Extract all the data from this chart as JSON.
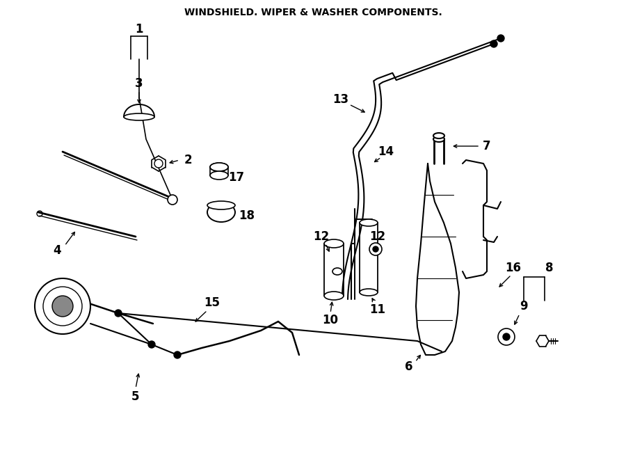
{
  "title": "WINDSHIELD. WIPER & WASHER COMPONENTS.",
  "bg_color": "#ffffff",
  "line_color": "#000000",
  "label_fontsize": 12,
  "title_fontsize": 10
}
